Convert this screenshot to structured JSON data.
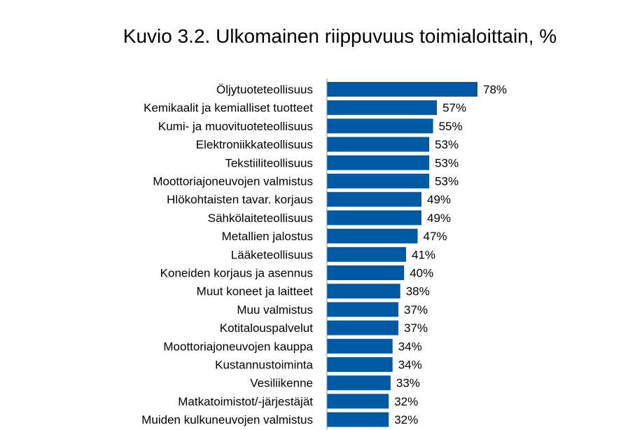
{
  "chart_data": {
    "type": "bar",
    "orientation": "horizontal",
    "title": "Kuvio 3.2. Ulkomainen riippuvuus toimialoittain, %",
    "xlabel": "",
    "ylabel": "",
    "categories": [
      "Öljytuoteteollisuus",
      "Kemikaalit ja kemialliset tuotteet",
      "Kumi- ja muovituoteteollisuus",
      "Elektroniikkateollisuus",
      "Tekstiiliteollisuus",
      "Moottoriajoneuvojen valmistus",
      "Hlökohtaisten tavar. korjaus",
      "Sähkölaiteteollisuus",
      "Metallien jalostus",
      "Lääketeollisuus",
      "Koneiden korjaus ja asennus",
      "Muut koneet ja laitteet",
      "Muu valmistus",
      "Kotitalouspalvelut",
      "Moottoriajoneuvojen kauppa",
      "Kustannustoiminta",
      "Vesiliikenne",
      "Matkatoimistot/-järjestäjät",
      "Muiden kulkuneuvojen valmistus"
    ],
    "values": [
      78,
      57,
      55,
      53,
      53,
      53,
      49,
      49,
      47,
      41,
      40,
      38,
      37,
      37,
      34,
      34,
      33,
      32,
      32
    ],
    "value_labels": [
      "78%",
      "57%",
      "55%",
      "53%",
      "53%",
      "53%",
      "49%",
      "49%",
      "47%",
      "41%",
      "40%",
      "38%",
      "37%",
      "37%",
      "34%",
      "34%",
      "33%",
      "32%",
      "32%"
    ],
    "xlim": [
      0,
      100
    ],
    "grid": false,
    "bar_color": "#0059A3",
    "axis_color": "#8C8C8C"
  }
}
